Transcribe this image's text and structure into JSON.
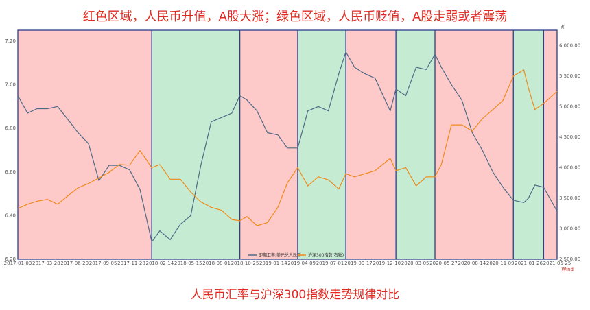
{
  "headline": "红色区域，人民币升值，A股大涨；绿色区域，人民币贬值，A股走弱或者震荡",
  "footline": "人民币汇率与沪深300指数走势规律对比",
  "source_mark": "Wind",
  "colors": {
    "red_zone": "#fdc9c9",
    "green_zone": "#c6ebd3",
    "boundary": "#2b3f8a",
    "fx_line": "#4e6a86",
    "index_line": "#f08a1a",
    "text_red": "#e02a22"
  },
  "chart_data": {
    "type": "line",
    "x_tick_labels": [
      "2017-01-03",
      "2017-03-28",
      "2017-06-20",
      "2017-09-05",
      "2017-11-28",
      "2018-02-14",
      "2018-05-15",
      "2018-08-01",
      "2018-10-25",
      "2019-01-14",
      "2019-04-09",
      "2019-07-01",
      "2019-09-17",
      "2019-12-10",
      "2020-03-05",
      "2020-05-27",
      "2020-08-14",
      "2020-11-09",
      "2021-01-26",
      "2021-05-25"
    ],
    "y_left": {
      "ticks": [
        6.2,
        6.4,
        6.6,
        6.8,
        7.0,
        7.2
      ],
      "tick_labels": [
        "6.20",
        "6.40",
        "6.60",
        "6.80",
        "7.00",
        "7.20"
      ],
      "ylim": [
        6.2,
        7.25
      ]
    },
    "y_right": {
      "ticks": [
        2500,
        3000,
        3500,
        4000,
        4500,
        5000,
        5500,
        6000
      ],
      "tick_labels": [
        "2,500.00",
        "3,000.00",
        "3,500.00",
        "4,000.00",
        "4,500.00",
        "5,000.00",
        "5,500.00",
        "6,000.00"
      ],
      "ylim": [
        2500,
        6250
      ],
      "unit_label": "点"
    },
    "zones": [
      {
        "color": "red",
        "from": "2017-01-03",
        "to": "2018-02-05"
      },
      {
        "color": "green",
        "from": "2018-02-05",
        "to": "2018-10-25"
      },
      {
        "color": "red",
        "from": "2018-10-25",
        "to": "2019-04-15"
      },
      {
        "color": "green",
        "from": "2019-04-15",
        "to": "2019-09-05"
      },
      {
        "color": "red",
        "from": "2019-09-05",
        "to": "2020-02-01"
      },
      {
        "color": "green",
        "from": "2020-02-01",
        "to": "2020-05-27"
      },
      {
        "color": "red",
        "from": "2020-05-27",
        "to": "2021-01-15"
      },
      {
        "color": "green",
        "from": "2021-01-15",
        "to": "2021-04-15"
      },
      {
        "color": "red",
        "from": "2021-04-15",
        "to": "2021-05-25"
      }
    ],
    "series": [
      {
        "name": "即期汇率:美元兑人民币",
        "axis": "left",
        "points": [
          [
            "2017-01-03",
            6.95
          ],
          [
            "2017-02-01",
            6.87
          ],
          [
            "2017-03-01",
            6.89
          ],
          [
            "2017-04-01",
            6.89
          ],
          [
            "2017-05-01",
            6.9
          ],
          [
            "2017-06-01",
            6.84
          ],
          [
            "2017-07-01",
            6.78
          ],
          [
            "2017-08-01",
            6.73
          ],
          [
            "2017-09-01",
            6.56
          ],
          [
            "2017-10-01",
            6.63
          ],
          [
            "2017-11-01",
            6.63
          ],
          [
            "2017-12-01",
            6.61
          ],
          [
            "2018-01-01",
            6.52
          ],
          [
            "2018-02-05",
            6.28
          ],
          [
            "2018-03-01",
            6.33
          ],
          [
            "2018-04-01",
            6.29
          ],
          [
            "2018-05-01",
            6.36
          ],
          [
            "2018-06-01",
            6.4
          ],
          [
            "2018-07-01",
            6.63
          ],
          [
            "2018-08-01",
            6.83
          ],
          [
            "2018-09-01",
            6.85
          ],
          [
            "2018-10-01",
            6.87
          ],
          [
            "2018-10-25",
            6.95
          ],
          [
            "2018-11-15",
            6.93
          ],
          [
            "2018-12-15",
            6.88
          ],
          [
            "2019-01-15",
            6.78
          ],
          [
            "2019-02-15",
            6.77
          ],
          [
            "2019-03-15",
            6.71
          ],
          [
            "2019-04-15",
            6.71
          ],
          [
            "2019-05-15",
            6.88
          ],
          [
            "2019-06-15",
            6.9
          ],
          [
            "2019-07-15",
            6.88
          ],
          [
            "2019-08-15",
            7.05
          ],
          [
            "2019-09-05",
            7.15
          ],
          [
            "2019-10-01",
            7.08
          ],
          [
            "2019-11-01",
            7.05
          ],
          [
            "2019-12-01",
            7.03
          ],
          [
            "2020-01-15",
            6.88
          ],
          [
            "2020-02-01",
            6.98
          ],
          [
            "2020-03-01",
            6.95
          ],
          [
            "2020-04-01",
            7.08
          ],
          [
            "2020-05-01",
            7.07
          ],
          [
            "2020-05-27",
            7.14
          ],
          [
            "2020-06-15",
            7.08
          ],
          [
            "2020-07-15",
            7.0
          ],
          [
            "2020-08-15",
            6.93
          ],
          [
            "2020-09-15",
            6.78
          ],
          [
            "2020-10-15",
            6.7
          ],
          [
            "2020-11-15",
            6.6
          ],
          [
            "2020-12-15",
            6.53
          ],
          [
            "2021-01-15",
            6.47
          ],
          [
            "2021-02-15",
            6.46
          ],
          [
            "2021-03-01",
            6.48
          ],
          [
            "2021-03-20",
            6.54
          ],
          [
            "2021-04-15",
            6.53
          ],
          [
            "2021-05-25",
            6.42
          ]
        ]
      },
      {
        "name": "沪深300指数(右轴)",
        "axis": "right",
        "points": [
          [
            "2017-01-03",
            3330
          ],
          [
            "2017-02-01",
            3400
          ],
          [
            "2017-03-01",
            3450
          ],
          [
            "2017-04-01",
            3480
          ],
          [
            "2017-05-01",
            3400
          ],
          [
            "2017-06-01",
            3540
          ],
          [
            "2017-07-01",
            3670
          ],
          [
            "2017-08-01",
            3740
          ],
          [
            "2017-09-01",
            3830
          ],
          [
            "2017-10-01",
            3920
          ],
          [
            "2017-11-01",
            4050
          ],
          [
            "2017-12-01",
            4040
          ],
          [
            "2018-01-01",
            4280
          ],
          [
            "2018-02-05",
            4000
          ],
          [
            "2018-03-01",
            4050
          ],
          [
            "2018-04-01",
            3810
          ],
          [
            "2018-05-01",
            3810
          ],
          [
            "2018-06-01",
            3600
          ],
          [
            "2018-07-01",
            3440
          ],
          [
            "2018-08-01",
            3350
          ],
          [
            "2018-09-01",
            3300
          ],
          [
            "2018-10-01",
            3150
          ],
          [
            "2018-10-25",
            3130
          ],
          [
            "2018-11-15",
            3200
          ],
          [
            "2018-12-15",
            3050
          ],
          [
            "2019-01-15",
            3100
          ],
          [
            "2019-02-15",
            3350
          ],
          [
            "2019-03-15",
            3750
          ],
          [
            "2019-04-15",
            4000
          ],
          [
            "2019-05-15",
            3700
          ],
          [
            "2019-06-15",
            3850
          ],
          [
            "2019-07-15",
            3800
          ],
          [
            "2019-08-15",
            3650
          ],
          [
            "2019-09-05",
            3900
          ],
          [
            "2019-10-01",
            3850
          ],
          [
            "2019-11-01",
            3900
          ],
          [
            "2019-12-01",
            3950
          ],
          [
            "2020-01-15",
            4150
          ],
          [
            "2020-02-01",
            3950
          ],
          [
            "2020-03-01",
            4000
          ],
          [
            "2020-04-01",
            3700
          ],
          [
            "2020-05-01",
            3850
          ],
          [
            "2020-05-27",
            3850
          ],
          [
            "2020-06-15",
            4050
          ],
          [
            "2020-07-15",
            4700
          ],
          [
            "2020-08-15",
            4700
          ],
          [
            "2020-09-15",
            4600
          ],
          [
            "2020-10-15",
            4800
          ],
          [
            "2020-11-15",
            4950
          ],
          [
            "2020-12-15",
            5100
          ],
          [
            "2021-01-15",
            5500
          ],
          [
            "2021-02-15",
            5600
          ],
          [
            "2021-03-01",
            5300
          ],
          [
            "2021-03-20",
            4950
          ],
          [
            "2021-04-15",
            5050
          ],
          [
            "2021-05-25",
            5250
          ]
        ]
      }
    ],
    "legend": [
      "即期汇率:美元兑人民币",
      "沪深300指数(右轴)"
    ],
    "legend_position": "bottom-center"
  }
}
